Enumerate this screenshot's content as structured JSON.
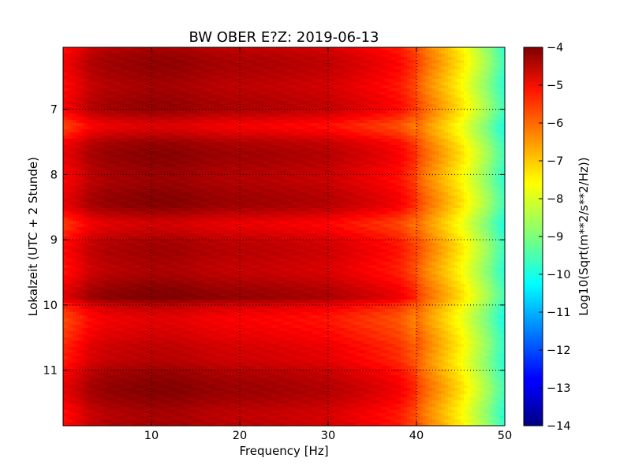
{
  "chart_data": {
    "type": "heatmap",
    "title": "BW OBER E?Z: 2019-06-13",
    "xlabel": "Frequency [Hz]",
    "ylabel": "Lokalzeit (UTC + 2 Stunde)",
    "xlim": [
      0,
      50
    ],
    "ylim": [
      11.85,
      6.05
    ],
    "y_inverted": true,
    "xticks": [
      10,
      20,
      30,
      40,
      50
    ],
    "yticks": [
      7,
      8,
      9,
      10,
      11
    ],
    "grid": true,
    "colormap": "jet",
    "colorbar": {
      "label": "Log10(Sqrt(m**2/s**2/Hz))",
      "range": [
        -14,
        -4
      ],
      "ticks": [
        -4,
        -5,
        -6,
        -7,
        -8,
        -9,
        -10,
        -11,
        -12,
        -13,
        -14
      ]
    },
    "frequency_profile": {
      "frequency_hz": [
        0,
        1,
        2,
        3,
        5,
        8,
        10,
        12,
        14,
        16,
        18,
        20,
        22,
        24,
        26,
        28,
        30,
        32,
        34,
        36,
        38,
        40,
        41,
        42,
        43,
        44,
        45,
        46,
        47,
        48,
        49,
        50
      ],
      "log10_amplitude": [
        -5.4,
        -5.2,
        -5.0,
        -4.75,
        -4.55,
        -4.45,
        -4.4,
        -4.4,
        -4.45,
        -4.55,
        -4.6,
        -4.65,
        -4.65,
        -4.7,
        -4.75,
        -4.8,
        -4.85,
        -5.0,
        -5.15,
        -5.3,
        -5.5,
        -6.0,
        -6.4,
        -6.7,
        -7.0,
        -7.3,
        -7.6,
        -8.0,
        -8.4,
        -8.8,
        -9.3,
        -9.8
      ]
    },
    "time_modulation": {
      "time_h": [
        6.05,
        6.5,
        7.0,
        7.25,
        7.5,
        8.0,
        8.5,
        8.75,
        9.0,
        9.5,
        9.9,
        10.0,
        10.2,
        10.5,
        10.8,
        11.0,
        11.5,
        11.85
      ],
      "offset": [
        0.0,
        0.2,
        0.05,
        -0.45,
        0.15,
        0.25,
        0.2,
        -0.3,
        -0.1,
        0.1,
        0.3,
        -0.2,
        -0.45,
        -0.5,
        -0.1,
        0.2,
        0.25,
        0.0
      ]
    }
  }
}
